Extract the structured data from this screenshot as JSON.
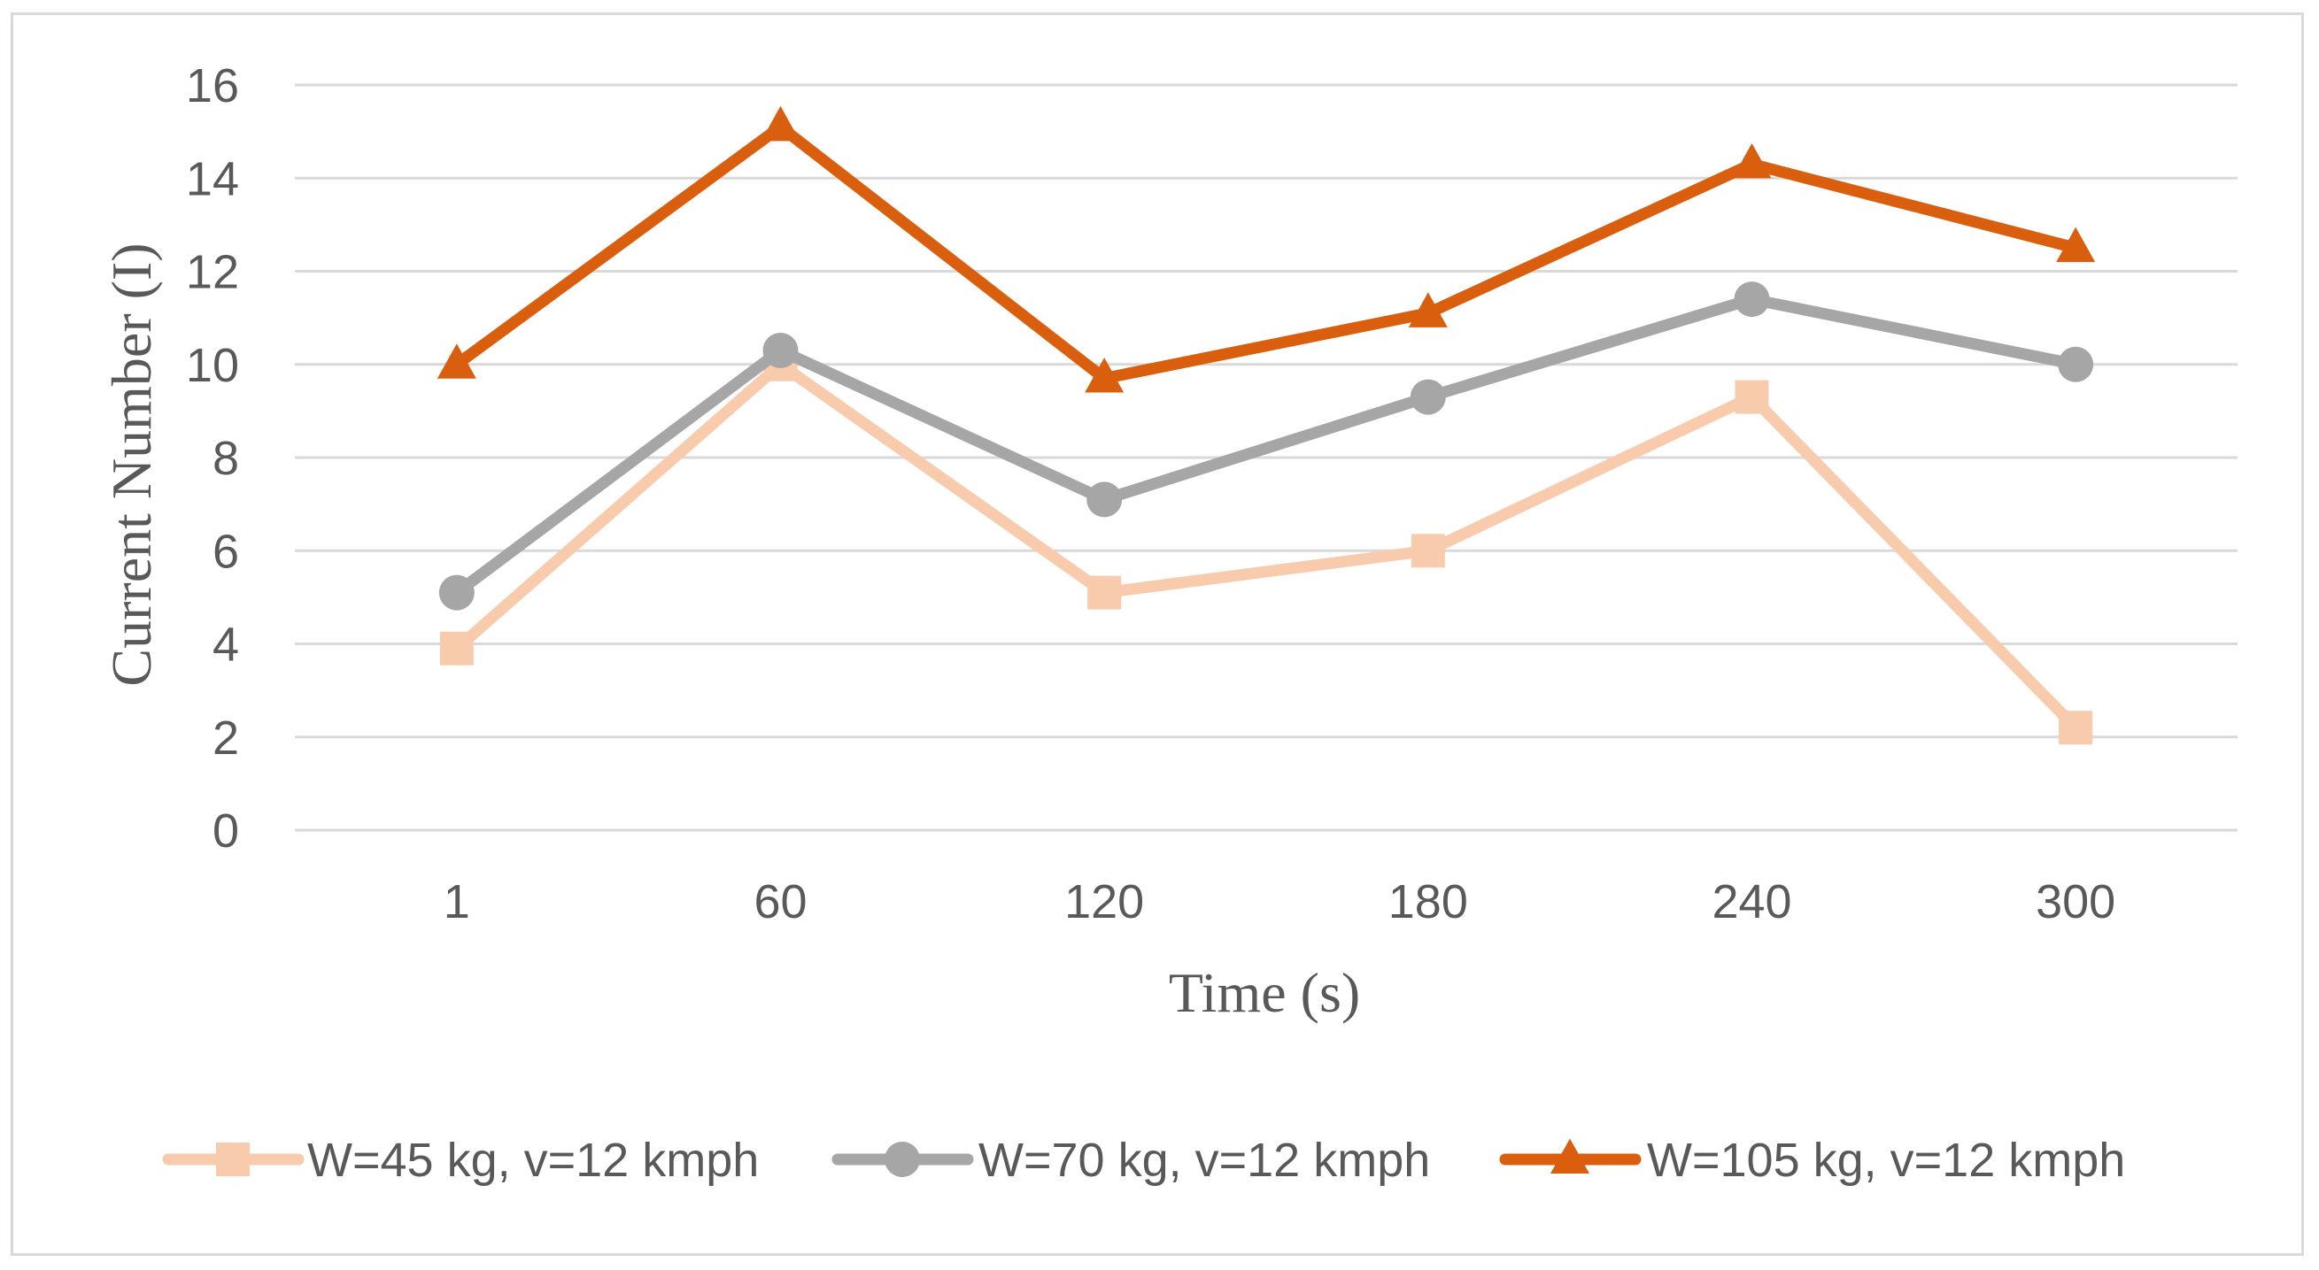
{
  "chart_data": {
    "type": "line",
    "title": "",
    "xlabel": "Time (s)",
    "ylabel": "Current Number (I)",
    "categories": [
      "1",
      "60",
      "120",
      "180",
      "240",
      "300"
    ],
    "ylim": [
      0,
      16
    ],
    "yticks": [
      "0",
      "2",
      "4",
      "6",
      "8",
      "10",
      "12",
      "14",
      "16"
    ],
    "grid": true,
    "legend_position": "bottom",
    "series": [
      {
        "name": "W=45 kg, v=12 kmph",
        "marker": "square",
        "color": "#f8cbad",
        "values": [
          3.9,
          10.0,
          5.1,
          6.0,
          9.3,
          2.2
        ]
      },
      {
        "name": "W=70 kg, v=12 kmph",
        "marker": "circle",
        "color": "#a6a6a6",
        "values": [
          5.1,
          10.3,
          7.1,
          9.3,
          11.4,
          10.0
        ]
      },
      {
        "name": "W=105 kg, v=12 kmph",
        "marker": "triangle",
        "color": "#d95f0e",
        "values": [
          10.0,
          15.1,
          9.7,
          11.1,
          14.3,
          12.5
        ]
      }
    ]
  }
}
